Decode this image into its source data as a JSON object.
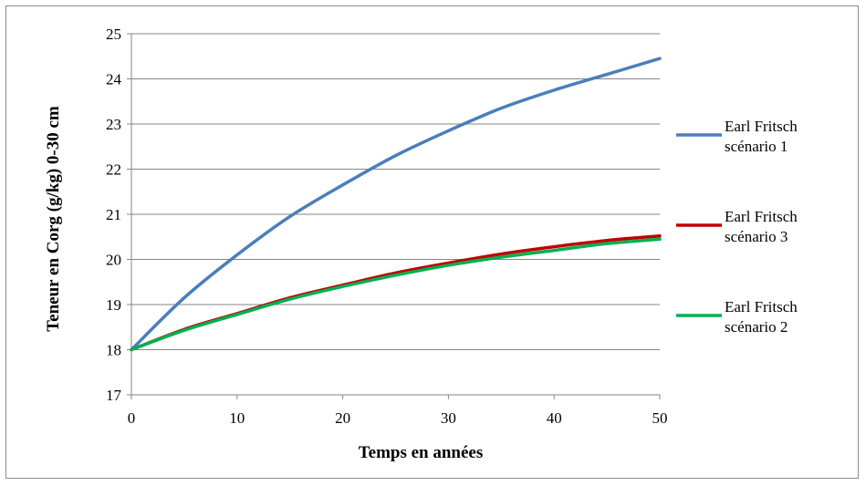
{
  "chart_data": {
    "type": "line",
    "title": "",
    "xlabel": "Temps en années",
    "ylabel": "Teneur en Corg (g/kg) 0-30 cm",
    "xlim": [
      0,
      50
    ],
    "ylim": [
      17,
      25
    ],
    "x_ticks": [
      "0",
      "10",
      "20",
      "30",
      "40",
      "50"
    ],
    "y_ticks": [
      "17",
      "18",
      "19",
      "20",
      "21",
      "22",
      "23",
      "24",
      "25"
    ],
    "grid": "horizontal",
    "legend_position": "right",
    "x": [
      0,
      5,
      10,
      15,
      20,
      25,
      30,
      35,
      40,
      45,
      50
    ],
    "series": [
      {
        "name": "Earl Fritsch scénario 1",
        "legend_lines": [
          "Earl Fritsch",
          "scénario 1"
        ],
        "color": "#4a7ebb",
        "values": [
          18.0,
          19.15,
          20.1,
          20.95,
          21.65,
          22.3,
          22.85,
          23.35,
          23.75,
          24.1,
          24.45
        ]
      },
      {
        "name": "Earl Fritsch scénario 3",
        "legend_lines": [
          "Earl Fritsch",
          "scénario 3"
        ],
        "color": "#c00000",
        "values": [
          18.0,
          18.45,
          18.8,
          19.15,
          19.43,
          19.7,
          19.92,
          20.12,
          20.28,
          20.42,
          20.52
        ]
      },
      {
        "name": "Earl Fritsch scénario 2",
        "legend_lines": [
          "Earl Fritsch",
          "scénario 2"
        ],
        "color": "#00b050",
        "values": [
          18.0,
          18.43,
          18.78,
          19.12,
          19.4,
          19.65,
          19.87,
          20.05,
          20.2,
          20.35,
          20.45
        ]
      }
    ]
  }
}
